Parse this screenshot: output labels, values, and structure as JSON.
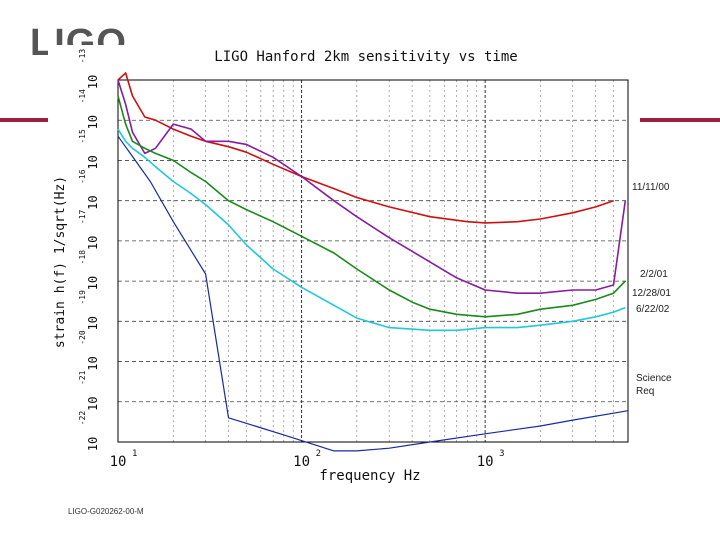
{
  "slide": {
    "logo_text": "LIGO",
    "footer_id": "LIGO-G020262-00-M",
    "band_color": "#9a1f40"
  },
  "chart_data": {
    "type": "line",
    "title": "LIGO Hanford 2km sensitivity vs time",
    "xlabel": "frequency Hz",
    "ylabel": "strain h(f) 1/sqrt(Hz)",
    "x_scale": "log",
    "y_scale": "log",
    "xlim": [
      10,
      6000
    ],
    "ylim": [
      1e-22,
      1e-13
    ],
    "grid": true,
    "x_tick_labels": [
      "10",
      "10",
      "10"
    ],
    "x_tick_exponents": [
      "1",
      "2",
      "3"
    ],
    "y_tick_labels": [
      "10",
      "10",
      "10",
      "10",
      "10",
      "10",
      "10",
      "10",
      "10",
      "10"
    ],
    "y_tick_exponents": [
      "-13",
      "-14",
      "-15",
      "-16",
      "-17",
      "-18",
      "-19",
      "-20",
      "-21",
      "-22"
    ],
    "series": [
      {
        "name": "11/11/00",
        "color": "#d01010",
        "x": [
          10,
          11,
          12,
          14,
          16,
          20,
          25,
          30,
          40,
          50,
          70,
          100,
          150,
          200,
          300,
          500,
          800,
          1000,
          1500,
          2000,
          3000,
          4000,
          5000
        ],
        "y": [
          1e-13,
          1.5e-13,
          4e-14,
          1.2e-14,
          1e-14,
          6e-15,
          4e-15,
          3e-15,
          2.2e-15,
          1.6e-15,
          8e-16,
          4e-16,
          2e-16,
          1.2e-16,
          7e-17,
          4e-17,
          3e-17,
          2.8e-17,
          3e-17,
          3.5e-17,
          5e-17,
          7e-17,
          1e-16
        ]
      },
      {
        "name": "2/2/01",
        "color": "#8a1aa0",
        "x": [
          10,
          11,
          12,
          14,
          16,
          20,
          25,
          30,
          40,
          50,
          70,
          100,
          150,
          200,
          300,
          500,
          700,
          1000,
          1500,
          2000,
          3000,
          4000,
          5000,
          5800
        ],
        "y": [
          1e-13,
          2.5e-14,
          5e-15,
          1.5e-15,
          2e-15,
          8e-15,
          6e-15,
          3e-15,
          3e-15,
          2.5e-15,
          1.2e-15,
          4e-16,
          1e-16,
          4e-17,
          1.2e-17,
          3e-18,
          1.2e-18,
          6e-19,
          5e-19,
          5e-19,
          6e-19,
          6e-19,
          8e-19,
          1e-16
        ]
      },
      {
        "name": "12/28/01",
        "color": "#1a8a1a",
        "x": [
          10,
          11,
          12,
          14,
          16,
          20,
          25,
          30,
          40,
          50,
          70,
          100,
          150,
          200,
          300,
          400,
          500,
          700,
          1000,
          1500,
          2000,
          3000,
          4000,
          5000,
          5800
        ],
        "y": [
          4e-14,
          8e-15,
          3e-15,
          2e-15,
          1.5e-15,
          1e-15,
          5e-16,
          3e-16,
          1e-16,
          6e-17,
          3e-17,
          1.3e-17,
          5e-18,
          2e-18,
          6e-19,
          3e-19,
          2e-19,
          1.5e-19,
          1.3e-19,
          1.5e-19,
          2e-19,
          2.5e-19,
          3.5e-19,
          5e-19,
          1e-18
        ]
      },
      {
        "name": "6/22/02",
        "color": "#20c8d8",
        "x": [
          10,
          11,
          12,
          14,
          16,
          20,
          25,
          30,
          40,
          50,
          70,
          100,
          150,
          200,
          300,
          500,
          700,
          1000,
          1500,
          2000,
          3000,
          4000,
          5000,
          5800
        ],
        "y": [
          6e-15,
          3e-15,
          2e-15,
          1.2e-15,
          7e-16,
          3e-16,
          1.5e-16,
          8e-17,
          2.5e-17,
          8e-18,
          2e-18,
          7e-19,
          2.5e-19,
          1.2e-19,
          7e-20,
          6e-20,
          6e-20,
          7e-20,
          7e-20,
          8e-20,
          1e-19,
          1.3e-19,
          1.7e-19,
          2.2e-19
        ]
      },
      {
        "name": "Science Req",
        "color": "#1a2aa0",
        "x": [
          10,
          15,
          20,
          30,
          40,
          80,
          150,
          200,
          300,
          500,
          1000,
          2000,
          3000,
          6000
        ],
        "y": [
          4e-15,
          3e-16,
          3e-17,
          1.5e-18,
          4e-22,
          1.5e-22,
          6e-23,
          6e-23,
          7e-23,
          1e-22,
          1.6e-22,
          2.5e-22,
          3.5e-22,
          6e-22
        ]
      }
    ],
    "legend_labels": [
      "11/11/00",
      "2/2/01",
      "12/28/01",
      "6/22/02",
      "Science",
      "Req"
    ],
    "legend_placement": "right"
  }
}
